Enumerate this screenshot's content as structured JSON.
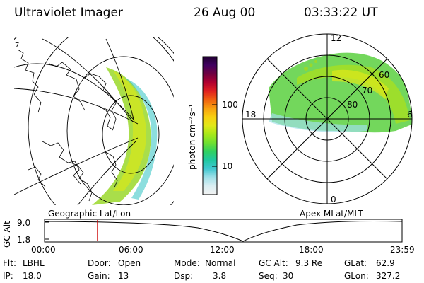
{
  "header": {
    "instrument": "Ultraviolet Imager",
    "date": "26 Aug 00",
    "time": "03:33:22 UT"
  },
  "geo_panel": {
    "caption": "Geographic Lat/Lon",
    "corner_text": "7"
  },
  "polar_panel": {
    "caption": "Apex MLat/MLT",
    "mlt_labels": {
      "top": "12",
      "left": "18",
      "right": "6",
      "bottom": "0"
    },
    "lat_labels": [
      "60",
      "70",
      "80"
    ]
  },
  "colorbar": {
    "unit_label": "photon cm⁻²s⁻¹",
    "ticks": [
      "100",
      "10"
    ],
    "colors": [
      "#f2f2f2",
      "#d9eef2",
      "#9fe0e8",
      "#40c8d0",
      "#20c8a0",
      "#30d060",
      "#70e030",
      "#a8e818",
      "#e0e818",
      "#f8d010",
      "#f8a010",
      "#f06010",
      "#e02020",
      "#b00030",
      "#700040",
      "#400060",
      "#200030"
    ]
  },
  "altitude_plot": {
    "ylabel": "GC Alt",
    "y_ticks": [
      "9.0",
      "1.8"
    ],
    "x_ticks": [
      "00:00",
      "06:00",
      "12:00",
      "18:00",
      "23:59"
    ],
    "marker_time": "03:33",
    "marker_color": "#cc0000"
  },
  "footer": {
    "row1": [
      {
        "key": "Flt:",
        "value": "LBHL"
      },
      {
        "key": "Door:",
        "value": "Open"
      },
      {
        "key": "Mode:",
        "value": "Normal"
      },
      {
        "key": "GC Alt:",
        "value": "9.3 Re"
      },
      {
        "key": "GLat:",
        "value": "62.9"
      }
    ],
    "row2": [
      {
        "key": "IP:",
        "value": "18.0"
      },
      {
        "key": "Gain:",
        "value": "13"
      },
      {
        "key": "Dsp:",
        "value": "3.8"
      },
      {
        "key": "Seq:",
        "value": "30"
      },
      {
        "key": "GLon:",
        "value": "327.2"
      }
    ]
  }
}
